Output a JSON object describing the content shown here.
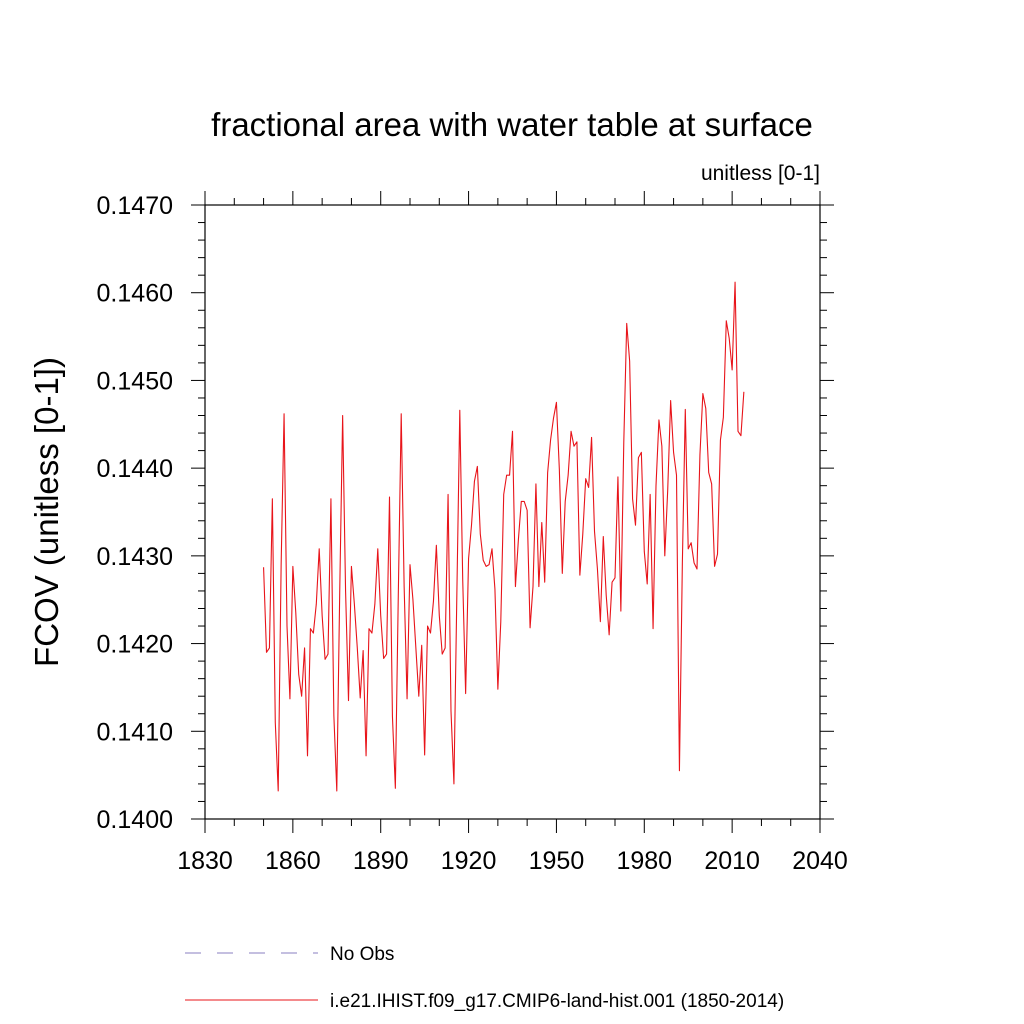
{
  "chart_data": {
    "type": "line",
    "title": "fractional area with water table at surface",
    "subtitle": "unitless [0-1]",
    "ylabel": "FCOV  (unitless [0-1])",
    "xlabel": "",
    "xlim": [
      1830,
      2040
    ],
    "ylim": [
      0.14,
      0.147
    ],
    "xticks": [
      "1830",
      "1860",
      "1890",
      "1920",
      "1950",
      "1980",
      "2010",
      "2040"
    ],
    "yticks": [
      "0.1400",
      "0.1410",
      "0.1420",
      "0.1430",
      "0.1440",
      "0.1450",
      "0.1460",
      "0.1470"
    ],
    "grid": false,
    "legend_position": "bottom",
    "series": [
      {
        "name": "No Obs",
        "color": "#8a7fc0",
        "dash": true,
        "x": [],
        "y": []
      },
      {
        "name": "i.e21.IHIST.f09_g17.CMIP6-land-hist.001 (1850-2014)",
        "color": "#e8141a",
        "x": [
          1850,
          1851,
          1852,
          1853,
          1854,
          1855,
          1856,
          1857,
          1858,
          1859,
          1860,
          1861,
          1862,
          1863,
          1864,
          1865,
          1866,
          1867,
          1868,
          1869,
          1870,
          1871,
          1872,
          1873,
          1874,
          1875,
          1876,
          1877,
          1878,
          1879,
          1880,
          1881,
          1882,
          1883,
          1884,
          1885,
          1886,
          1887,
          1888,
          1889,
          1890,
          1891,
          1892,
          1893,
          1894,
          1895,
          1896,
          1897,
          1898,
          1899,
          1900,
          1901,
          1902,
          1903,
          1904,
          1905,
          1906,
          1907,
          1908,
          1909,
          1910,
          1911,
          1912,
          1913,
          1914,
          1915,
          1916,
          1917,
          1918,
          1919,
          1920,
          1921,
          1922,
          1923,
          1924,
          1925,
          1926,
          1927,
          1928,
          1929,
          1930,
          1931,
          1932,
          1933,
          1934,
          1935,
          1936,
          1937,
          1938,
          1939,
          1940,
          1941,
          1942,
          1943,
          1944,
          1945,
          1946,
          1947,
          1948,
          1949,
          1950,
          1951,
          1952,
          1953,
          1954,
          1955,
          1956,
          1957,
          1958,
          1959,
          1960,
          1961,
          1962,
          1963,
          1964,
          1965,
          1966,
          1967,
          1968,
          1969,
          1970,
          1971,
          1972,
          1973,
          1974,
          1975,
          1976,
          1977,
          1978,
          1979,
          1980,
          1981,
          1982,
          1983,
          1984,
          1985,
          1986,
          1987,
          1988,
          1989,
          1990,
          1991,
          1992,
          1993,
          1994,
          1995,
          1996,
          1997,
          1998,
          1999,
          2000,
          2001,
          2002,
          2003,
          2004,
          2005,
          2006,
          2007,
          2008,
          2009,
          2010,
          2011,
          2012,
          2013,
          2014
        ],
        "y": [
          0.14287,
          0.1419,
          0.14195,
          0.14365,
          0.1411,
          0.14032,
          0.1429,
          0.14462,
          0.1422,
          0.14137,
          0.14288,
          0.14235,
          0.14165,
          0.1414,
          0.14195,
          0.14072,
          0.14217,
          0.14212,
          0.14245,
          0.14308,
          0.14232,
          0.14182,
          0.14188,
          0.14365,
          0.14118,
          0.14032,
          0.14258,
          0.1446,
          0.1426,
          0.14135,
          0.14288,
          0.14245,
          0.14195,
          0.14138,
          0.14192,
          0.14072,
          0.14217,
          0.14212,
          0.14245,
          0.14308,
          0.14232,
          0.14183,
          0.14188,
          0.14367,
          0.14117,
          0.14035,
          0.14255,
          0.14462,
          0.14265,
          0.14137,
          0.1429,
          0.1425,
          0.14195,
          0.1414,
          0.14198,
          0.14073,
          0.1422,
          0.14212,
          0.14248,
          0.14312,
          0.14232,
          0.14188,
          0.14195,
          0.1437,
          0.14123,
          0.1404,
          0.14257,
          0.14466,
          0.14273,
          0.14143,
          0.14297,
          0.14335,
          0.14385,
          0.14402,
          0.14325,
          0.14295,
          0.14288,
          0.1429,
          0.14308,
          0.14262,
          0.14148,
          0.14225,
          0.1437,
          0.14392,
          0.14392,
          0.14442,
          0.14265,
          0.14318,
          0.14362,
          0.14362,
          0.14352,
          0.14218,
          0.14265,
          0.14382,
          0.14265,
          0.14338,
          0.1427,
          0.14395,
          0.14432,
          0.14457,
          0.14475,
          0.14398,
          0.1428,
          0.14362,
          0.14392,
          0.14442,
          0.14425,
          0.1443,
          0.14278,
          0.14325,
          0.14388,
          0.14378,
          0.14435,
          0.14328,
          0.14285,
          0.14225,
          0.14322,
          0.14255,
          0.1421,
          0.1427,
          0.14275,
          0.1439,
          0.14237,
          0.1443,
          0.14565,
          0.14522,
          0.14365,
          0.14335,
          0.14412,
          0.14418,
          0.14305,
          0.14268,
          0.1437,
          0.14217,
          0.1438,
          0.14455,
          0.14425,
          0.143,
          0.14375,
          0.14477,
          0.14418,
          0.14392,
          0.14055,
          0.14292,
          0.14467,
          0.14308,
          0.14315,
          0.14292,
          0.14285,
          0.14415,
          0.14485,
          0.14468,
          0.14395,
          0.14382,
          0.14288,
          0.14302,
          0.14432,
          0.14458,
          0.14568,
          0.14548,
          0.14512,
          0.14612,
          0.14442,
          0.14437,
          0.14487
        ]
      }
    ]
  }
}
